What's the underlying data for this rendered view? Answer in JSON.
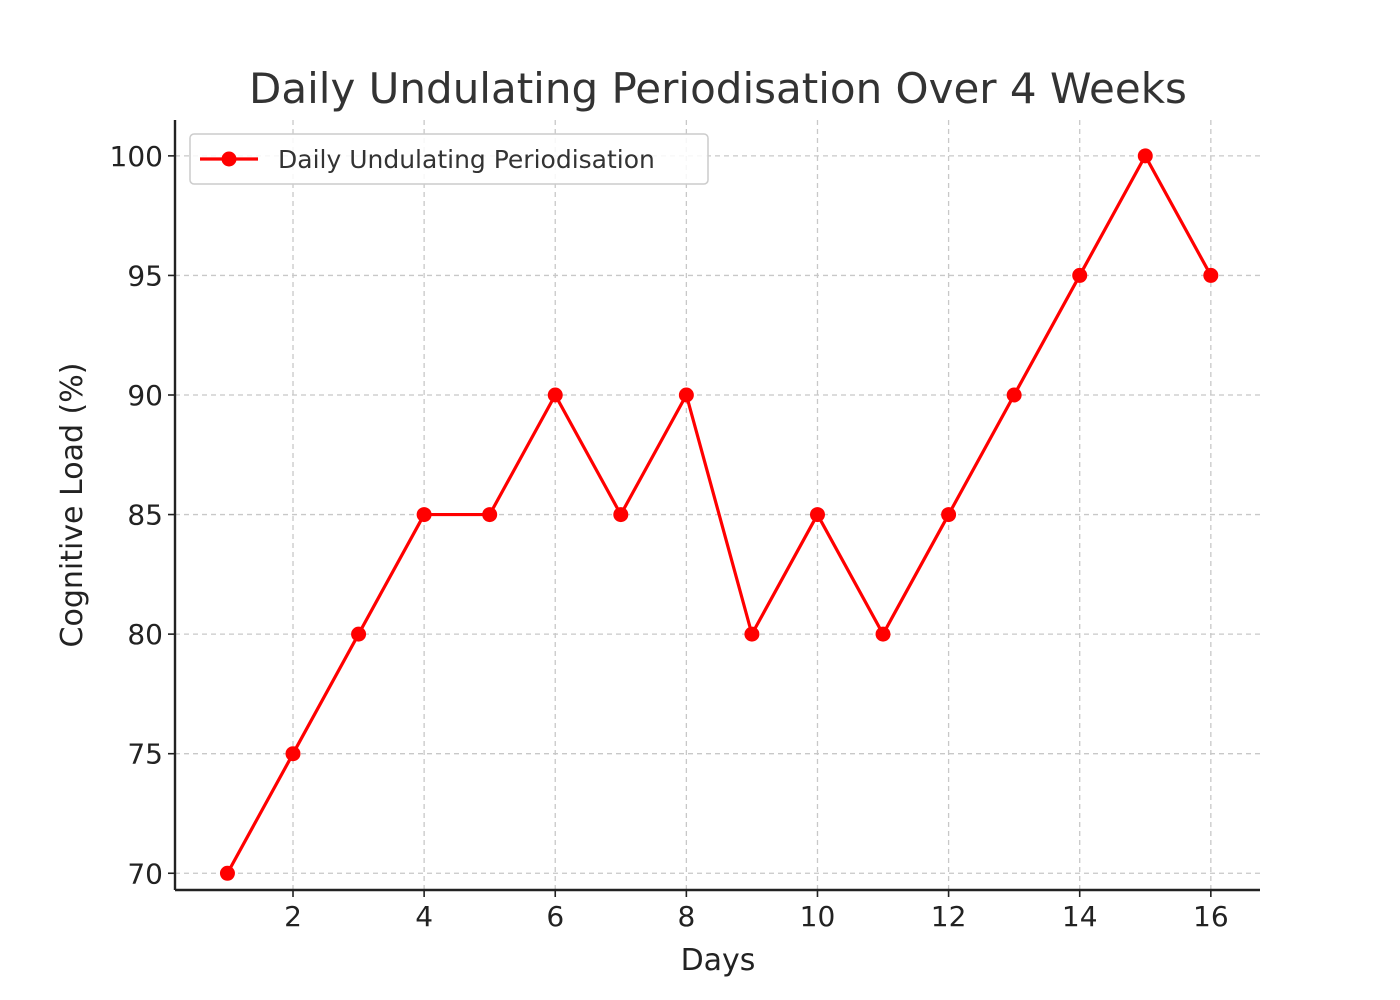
{
  "chart_data": {
    "type": "line",
    "title": "Daily Undulating Periodisation Over 4 Weeks",
    "xlabel": "Days",
    "ylabel": "Cognitive Load (%)",
    "xlim": [
      0.2,
      16.75
    ],
    "ylim": [
      69.3,
      101.5
    ],
    "x_ticks": [
      2,
      4,
      6,
      8,
      10,
      12,
      14,
      16
    ],
    "y_ticks": [
      70,
      75,
      80,
      85,
      90,
      95,
      100
    ],
    "grid": true,
    "legend_position": "top-left",
    "x": [
      1,
      2,
      3,
      4,
      5,
      6,
      7,
      8,
      9,
      10,
      11,
      12,
      13,
      14,
      15,
      16
    ],
    "series": [
      {
        "name": "Daily Undulating Periodisation",
        "color": "#ff0000",
        "marker": "circle",
        "values": [
          70,
          75,
          80,
          85,
          85,
          90,
          85,
          90,
          80,
          85,
          80,
          85,
          90,
          95,
          100,
          95
        ]
      }
    ]
  }
}
